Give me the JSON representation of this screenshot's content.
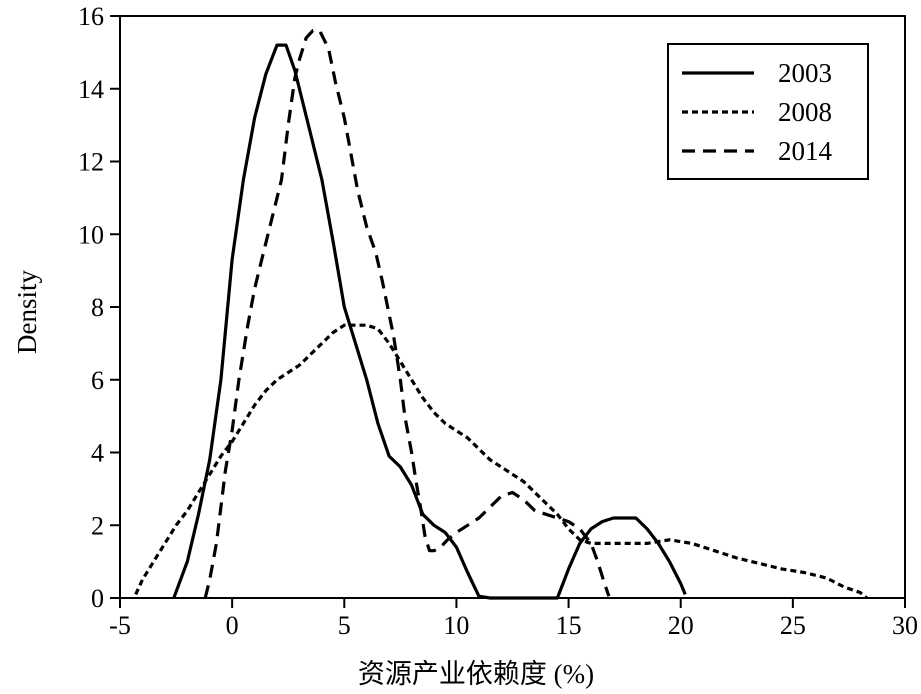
{
  "chart_data": {
    "type": "line",
    "title": "",
    "xlabel": "资源产业依赖度 (%)",
    "ylabel": "Density",
    "xlim": [
      -5,
      30
    ],
    "ylim": [
      0,
      16
    ],
    "x_ticks": [
      "-5",
      "0",
      "5",
      "10",
      "15",
      "20",
      "25",
      "30"
    ],
    "y_ticks": [
      "0",
      "2",
      "4",
      "6",
      "8",
      "10",
      "12",
      "14",
      "16"
    ],
    "grid": false,
    "legend_position": "top-right",
    "series": [
      {
        "name": "2003",
        "style": "solid",
        "points": [
          [
            -2.6,
            0
          ],
          [
            -2.0,
            1.0
          ],
          [
            -1.5,
            2.3
          ],
          [
            -1.0,
            3.8
          ],
          [
            -0.5,
            6.0
          ],
          [
            0.0,
            9.3
          ],
          [
            0.5,
            11.5
          ],
          [
            1.0,
            13.2
          ],
          [
            1.5,
            14.4
          ],
          [
            2.0,
            15.2
          ],
          [
            2.4,
            15.2
          ],
          [
            2.8,
            14.5
          ],
          [
            3.4,
            13.0
          ],
          [
            4.0,
            11.5
          ],
          [
            4.5,
            9.8
          ],
          [
            5.0,
            8.0
          ],
          [
            5.5,
            7.0
          ],
          [
            6.0,
            6.0
          ],
          [
            6.5,
            4.8
          ],
          [
            7.0,
            3.9
          ],
          [
            7.5,
            3.6
          ],
          [
            8.0,
            3.1
          ],
          [
            8.5,
            2.3
          ],
          [
            9.0,
            2.0
          ],
          [
            9.5,
            1.8
          ],
          [
            10.0,
            1.4
          ],
          [
            10.5,
            0.7
          ],
          [
            11.0,
            0.05
          ],
          [
            11.5,
            0
          ],
          [
            13.0,
            0
          ],
          [
            14.5,
            0
          ],
          [
            15.0,
            0.8
          ],
          [
            15.5,
            1.5
          ],
          [
            16.0,
            1.9
          ],
          [
            16.5,
            2.1
          ],
          [
            17.0,
            2.2
          ],
          [
            17.5,
            2.2
          ],
          [
            18.0,
            2.2
          ],
          [
            18.5,
            1.9
          ],
          [
            19.0,
            1.5
          ],
          [
            19.5,
            1.0
          ],
          [
            20.0,
            0.4
          ],
          [
            20.2,
            0.1
          ]
        ]
      },
      {
        "name": "2008",
        "style": "dotted",
        "points": [
          [
            -4.3,
            0.1
          ],
          [
            -4.0,
            0.5
          ],
          [
            -3.5,
            1.0
          ],
          [
            -3.0,
            1.5
          ],
          [
            -2.5,
            2.0
          ],
          [
            -2.0,
            2.4
          ],
          [
            -1.5,
            2.9
          ],
          [
            -1.0,
            3.4
          ],
          [
            -0.5,
            3.9
          ],
          [
            0.0,
            4.3
          ],
          [
            0.5,
            4.8
          ],
          [
            1.0,
            5.3
          ],
          [
            1.5,
            5.7
          ],
          [
            2.0,
            6.0
          ],
          [
            3.0,
            6.4
          ],
          [
            4.0,
            7.0
          ],
          [
            4.5,
            7.3
          ],
          [
            5.0,
            7.5
          ],
          [
            6.0,
            7.5
          ],
          [
            6.5,
            7.4
          ],
          [
            7.0,
            7.0
          ],
          [
            7.5,
            6.5
          ],
          [
            8.0,
            6.0
          ],
          [
            8.5,
            5.5
          ],
          [
            9.0,
            5.1
          ],
          [
            9.5,
            4.8
          ],
          [
            10.0,
            4.6
          ],
          [
            10.5,
            4.4
          ],
          [
            11.0,
            4.1
          ],
          [
            11.5,
            3.8
          ],
          [
            12.0,
            3.6
          ],
          [
            12.5,
            3.4
          ],
          [
            13.0,
            3.2
          ],
          [
            13.5,
            2.9
          ],
          [
            14.0,
            2.6
          ],
          [
            14.5,
            2.3
          ],
          [
            15.0,
            1.9
          ],
          [
            15.5,
            1.6
          ],
          [
            16.0,
            1.5
          ],
          [
            16.5,
            1.5
          ],
          [
            17.5,
            1.5
          ],
          [
            18.5,
            1.5
          ],
          [
            19.5,
            1.6
          ],
          [
            20.5,
            1.5
          ],
          [
            21.5,
            1.3
          ],
          [
            22.5,
            1.1
          ],
          [
            23.5,
            0.95
          ],
          [
            24.5,
            0.8
          ],
          [
            25.5,
            0.7
          ],
          [
            26.5,
            0.55
          ],
          [
            27.3,
            0.3
          ],
          [
            28.0,
            0.15
          ],
          [
            28.3,
            0.0
          ]
        ]
      },
      {
        "name": "2014",
        "style": "dashed",
        "points": [
          [
            -1.2,
            0
          ],
          [
            -1.0,
            0.5
          ],
          [
            -0.7,
            1.5
          ],
          [
            -0.5,
            2.5
          ],
          [
            -0.3,
            3.5
          ],
          [
            0.0,
            4.6
          ],
          [
            0.3,
            6.0
          ],
          [
            0.7,
            7.5
          ],
          [
            1.0,
            8.5
          ],
          [
            1.4,
            9.5
          ],
          [
            1.8,
            10.5
          ],
          [
            2.2,
            11.5
          ],
          [
            2.5,
            13.0
          ],
          [
            2.8,
            14.3
          ],
          [
            3.0,
            14.8
          ],
          [
            3.3,
            15.4
          ],
          [
            3.6,
            15.6
          ],
          [
            3.9,
            15.6
          ],
          [
            4.3,
            15.1
          ],
          [
            4.6,
            14.2
          ],
          [
            5.0,
            13.2
          ],
          [
            5.3,
            12.2
          ],
          [
            5.6,
            11.2
          ],
          [
            6.0,
            10.2
          ],
          [
            6.4,
            9.5
          ],
          [
            6.7,
            8.7
          ],
          [
            7.0,
            7.8
          ],
          [
            7.2,
            7.2
          ],
          [
            7.5,
            6.0
          ],
          [
            7.7,
            5.0
          ],
          [
            8.0,
            4.0
          ],
          [
            8.2,
            3.2
          ],
          [
            8.4,
            2.5
          ],
          [
            8.6,
            1.7
          ],
          [
            8.8,
            1.3
          ],
          [
            9.0,
            1.3
          ],
          [
            9.3,
            1.4
          ],
          [
            9.6,
            1.6
          ],
          [
            10.0,
            1.8
          ],
          [
            10.5,
            2.0
          ],
          [
            11.0,
            2.2
          ],
          [
            11.5,
            2.5
          ],
          [
            12.0,
            2.8
          ],
          [
            12.5,
            2.9
          ],
          [
            13.0,
            2.7
          ],
          [
            13.5,
            2.4
          ],
          [
            14.0,
            2.3
          ],
          [
            14.5,
            2.2
          ],
          [
            15.0,
            2.1
          ],
          [
            15.5,
            1.9
          ],
          [
            16.0,
            1.5
          ],
          [
            16.3,
            1.0
          ],
          [
            16.6,
            0.4
          ],
          [
            16.8,
            0.05
          ]
        ]
      }
    ]
  },
  "colors": {
    "line": "#000000",
    "background": "#ffffff"
  }
}
